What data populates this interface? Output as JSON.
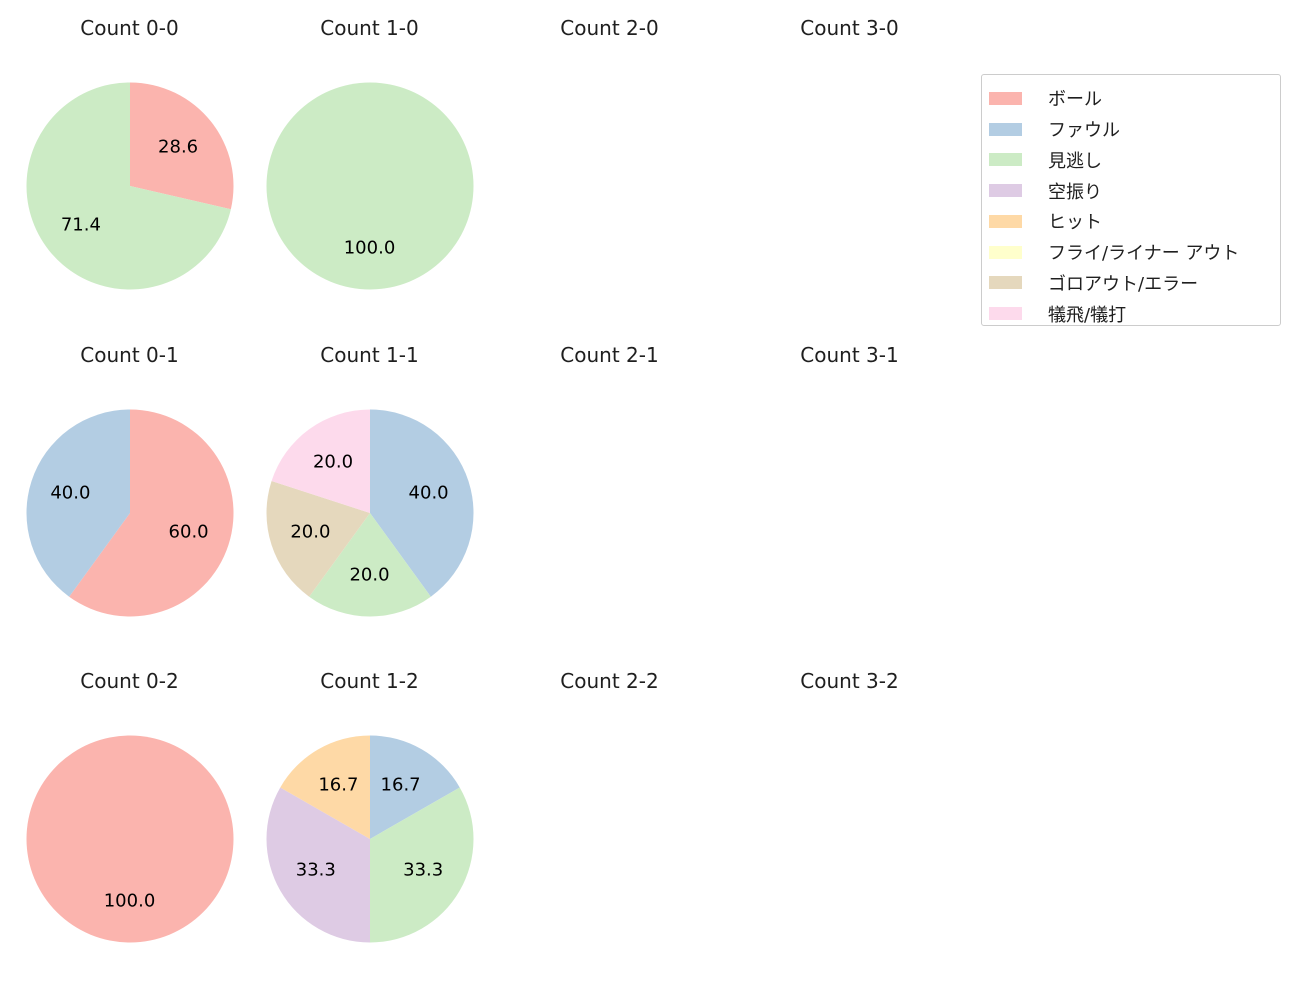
{
  "figure": {
    "background": "#ffffff",
    "text_color": "#1f1f1f"
  },
  "palette": {
    "ball": "#fbb4ae",
    "foul": "#b3cde3",
    "looking": "#ccebc5",
    "swinging": "#decbe4",
    "hit": "#fed9a6",
    "fly_liner_out": "#ffffcc",
    "ground_out_error": "#e5d8bd",
    "sacrifice": "#fddaec"
  },
  "legend": {
    "position": "top-right",
    "items": [
      {
        "key": "ball",
        "label": "ボール"
      },
      {
        "key": "foul",
        "label": "ファウル"
      },
      {
        "key": "looking",
        "label": "見逃し"
      },
      {
        "key": "swinging",
        "label": "空振り"
      },
      {
        "key": "hit",
        "label": "ヒット"
      },
      {
        "key": "fly_liner_out",
        "label": "フライ/ライナー アウト"
      },
      {
        "key": "ground_out_error",
        "label": "ゴロアウト/エラー"
      },
      {
        "key": "sacrifice",
        "label": "犠飛/犠打"
      }
    ]
  },
  "chart_data": [
    {
      "type": "pie",
      "title": "Count 0-0",
      "start_angle": 90,
      "direction": "clockwise",
      "slices": [
        {
          "key": "ball",
          "label": "ボール",
          "value": 28.6,
          "display": "28.6"
        },
        {
          "key": "looking",
          "label": "見逃し",
          "value": 71.4,
          "display": "71.4"
        }
      ]
    },
    {
      "type": "pie",
      "title": "Count 1-0",
      "start_angle": 90,
      "direction": "clockwise",
      "slices": [
        {
          "key": "looking",
          "label": "見逃し",
          "value": 100.0,
          "display": "100.0"
        }
      ]
    },
    {
      "type": "pie",
      "title": "Count 2-0",
      "start_angle": 90,
      "direction": "clockwise",
      "slices": []
    },
    {
      "type": "pie",
      "title": "Count 3-0",
      "start_angle": 90,
      "direction": "clockwise",
      "slices": []
    },
    {
      "type": "pie",
      "title": "Count 0-1",
      "start_angle": 90,
      "direction": "clockwise",
      "slices": [
        {
          "key": "ball",
          "label": "ボール",
          "value": 60.0,
          "display": "60.0"
        },
        {
          "key": "foul",
          "label": "ファウル",
          "value": 40.0,
          "display": "40.0"
        }
      ]
    },
    {
      "type": "pie",
      "title": "Count 1-1",
      "start_angle": 90,
      "direction": "clockwise",
      "slices": [
        {
          "key": "foul",
          "label": "ファウル",
          "value": 40.0,
          "display": "40.0"
        },
        {
          "key": "looking",
          "label": "見逃し",
          "value": 20.0,
          "display": "20.0"
        },
        {
          "key": "ground_out_error",
          "label": "ゴロアウト/エラー",
          "value": 20.0,
          "display": "20.0"
        },
        {
          "key": "sacrifice",
          "label": "犠飛/犠打",
          "value": 20.0,
          "display": "20.0"
        }
      ]
    },
    {
      "type": "pie",
      "title": "Count 2-1",
      "start_angle": 90,
      "direction": "clockwise",
      "slices": []
    },
    {
      "type": "pie",
      "title": "Count 3-1",
      "start_angle": 90,
      "direction": "clockwise",
      "slices": []
    },
    {
      "type": "pie",
      "title": "Count 0-2",
      "start_angle": 90,
      "direction": "clockwise",
      "slices": [
        {
          "key": "ball",
          "label": "ボール",
          "value": 100.0,
          "display": "100.0"
        }
      ]
    },
    {
      "type": "pie",
      "title": "Count 1-2",
      "start_angle": 90,
      "direction": "clockwise",
      "slices": [
        {
          "key": "foul",
          "label": "ファウル",
          "value": 16.7,
          "display": "16.7"
        },
        {
          "key": "looking",
          "label": "見逃し",
          "value": 33.3,
          "display": "33.3"
        },
        {
          "key": "swinging",
          "label": "空振り",
          "value": 33.3,
          "display": "33.3"
        },
        {
          "key": "hit",
          "label": "ヒット",
          "value": 16.7,
          "display": "16.7"
        }
      ]
    },
    {
      "type": "pie",
      "title": "Count 2-2",
      "start_angle": 90,
      "direction": "clockwise",
      "slices": []
    },
    {
      "type": "pie",
      "title": "Count 3-2",
      "start_angle": 90,
      "direction": "clockwise",
      "slices": []
    }
  ]
}
